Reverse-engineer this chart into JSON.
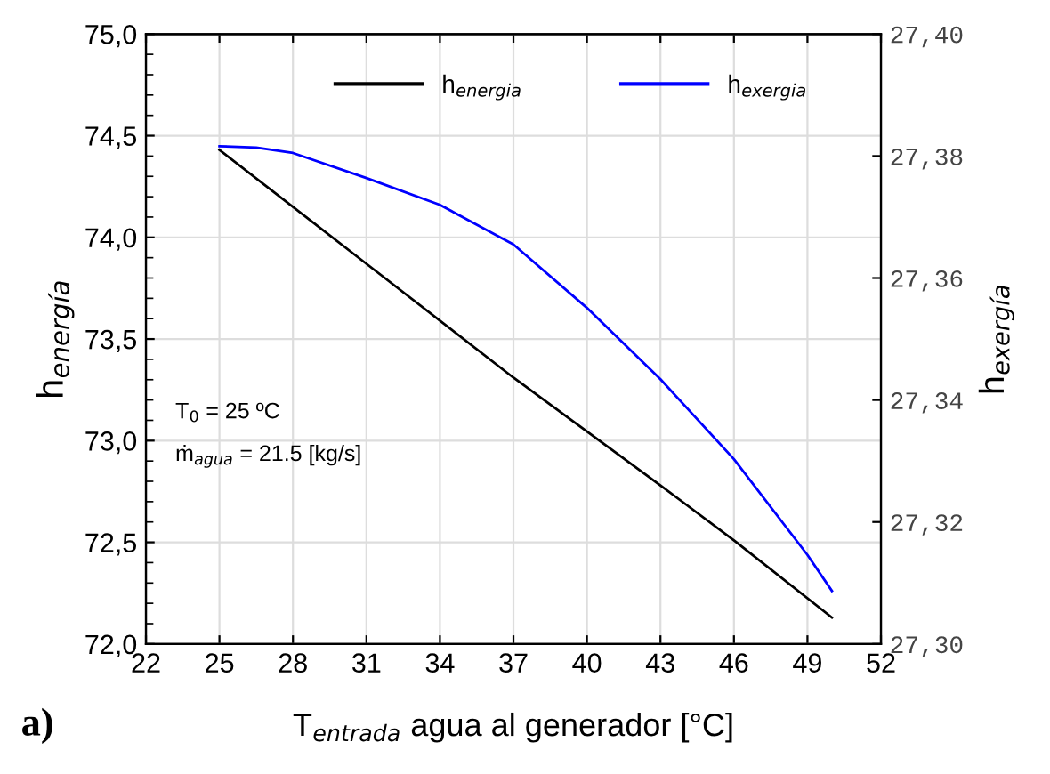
{
  "chart_data": {
    "type": "line",
    "xlabel": "T$_{entrada}$ agua al generador [°C]",
    "ylabel": "h$_{energía}$",
    "y2label": "h$_{exergía}$",
    "xlim": [
      22,
      52
    ],
    "xticks": [
      22,
      25,
      28,
      31,
      34,
      37,
      40,
      43,
      46,
      49,
      52
    ],
    "ylim": [
      72.0,
      75.0
    ],
    "yticks": [
      {
        "value": 72.0,
        "label": "72,0"
      },
      {
        "value": 72.5,
        "label": "72,5"
      },
      {
        "value": 73.0,
        "label": "73,0"
      },
      {
        "value": 73.5,
        "label": "73,5"
      },
      {
        "value": 74.0,
        "label": "74,0"
      },
      {
        "value": 74.5,
        "label": "74,5"
      },
      {
        "value": 75.0,
        "label": "75,0"
      }
    ],
    "y2lim": [
      27.3,
      27.4
    ],
    "y2ticks": [
      {
        "value": 27.3,
        "label": "27,30"
      },
      {
        "value": 27.32,
        "label": "27,32"
      },
      {
        "value": 27.34,
        "label": "27,34"
      },
      {
        "value": 27.36,
        "label": "27,36"
      },
      {
        "value": 27.38,
        "label": "27,38"
      },
      {
        "value": 27.4,
        "label": "27,40"
      }
    ],
    "grid": true,
    "legend": "top right",
    "marker": "none",
    "line_style": "solid",
    "series": [
      {
        "name": "h$_{energia}$",
        "color": "#000000",
        "x": [
          25,
          31,
          37,
          43,
          46,
          50
        ],
        "values": [
          74.43,
          73.87,
          73.31,
          72.78,
          72.51,
          72.13
        ]
      },
      {
        "name": "h$_{exergia}$",
        "color": "#0000ff",
        "axis": "y2",
        "x": [
          25,
          26.5,
          28,
          31,
          34,
          37,
          40,
          43,
          46,
          49,
          50
        ],
        "values": [
          27.3816,
          27.3814,
          27.3805,
          27.3764,
          27.372,
          27.3655,
          27.3551,
          27.3434,
          27.3303,
          27.3146,
          27.3087
        ]
      }
    ],
    "annotations": [
      "T$_{0}$ = 25 ºC",
      "ṁ$_{agua}$ = 21.5 [kg/s]",
      "a)"
    ]
  }
}
